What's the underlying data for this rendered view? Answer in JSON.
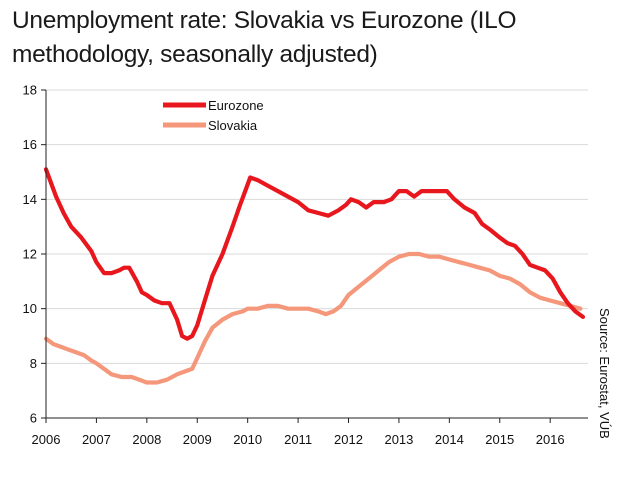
{
  "title": "Unemployment rate: Slovakia vs Eurozone (ILO methodology, seasonally adjusted)",
  "source": "Source: Eurostat, VÚB",
  "colors": {
    "eurozone": "#e8171d",
    "slovakia": "#f5977a",
    "grid": "#d9d9d9",
    "axis": "#222222"
  },
  "chart_data": {
    "type": "line",
    "title": "Unemployment rate: Slovakia vs Eurozone (ILO methodology, seasonally adjusted)",
    "xlabel": "",
    "ylabel": "",
    "xlim": [
      2006.0,
      2016.75
    ],
    "ylim": [
      6,
      18
    ],
    "x_ticks": [
      "2006",
      "2007",
      "2008",
      "2009",
      "2010",
      "2011",
      "2012",
      "2013",
      "2014",
      "2015",
      "2016"
    ],
    "y_ticks": [
      "6",
      "8",
      "10",
      "12",
      "14",
      "16",
      "18"
    ],
    "grid": "horizontal",
    "legend_position": "top-left",
    "series": [
      {
        "name": "Eurozone",
        "x": [
          2006.0,
          2006.1,
          2006.2,
          2006.35,
          2006.5,
          2006.7,
          2006.9,
          2007.0,
          2007.15,
          2007.3,
          2007.45,
          2007.55,
          2007.65,
          2007.8,
          2007.9,
          2008.0,
          2008.15,
          2008.3,
          2008.45,
          2008.6,
          2008.7,
          2008.8,
          2008.9,
          2009.0,
          2009.15,
          2009.3,
          2009.5,
          2009.7,
          2009.85,
          2009.95,
          2010.05,
          2010.2,
          2010.4,
          2010.6,
          2010.8,
          2011.0,
          2011.2,
          2011.4,
          2011.6,
          2011.8,
          2011.95,
          2012.05,
          2012.2,
          2012.35,
          2012.5,
          2012.7,
          2012.85,
          2013.0,
          2013.15,
          2013.3,
          2013.45,
          2013.6,
          2013.8,
          2013.95,
          2014.1,
          2014.3,
          2014.5,
          2014.65,
          2014.8,
          2015.0,
          2015.15,
          2015.3,
          2015.45,
          2015.6,
          2015.75,
          2015.9,
          2016.05,
          2016.2,
          2016.35,
          2016.5,
          2016.65
        ],
        "values": [
          15.1,
          14.6,
          14.1,
          13.5,
          13.0,
          12.6,
          12.1,
          11.7,
          11.3,
          11.3,
          11.4,
          11.5,
          11.5,
          11.0,
          10.6,
          10.5,
          10.3,
          10.2,
          10.2,
          9.6,
          9.0,
          8.9,
          9.0,
          9.4,
          10.3,
          11.2,
          12.0,
          13.0,
          13.8,
          14.3,
          14.8,
          14.7,
          14.5,
          14.3,
          14.1,
          13.9,
          13.6,
          13.5,
          13.4,
          13.6,
          13.8,
          14.0,
          13.9,
          13.7,
          13.9,
          13.9,
          14.0,
          14.3,
          14.3,
          14.1,
          14.3,
          14.3,
          14.3,
          14.3,
          14.0,
          13.7,
          13.5,
          13.1,
          12.9,
          12.6,
          12.4,
          12.3,
          12.0,
          11.6,
          11.5,
          11.4,
          11.1,
          10.6,
          10.2,
          9.9,
          9.7
        ]
      },
      {
        "name": "Slovakia",
        "x": [
          2006.0,
          2006.15,
          2006.3,
          2006.45,
          2006.6,
          2006.75,
          2006.9,
          2007.0,
          2007.15,
          2007.3,
          2007.5,
          2007.7,
          2007.85,
          2008.0,
          2008.2,
          2008.4,
          2008.6,
          2008.75,
          2008.9,
          2009.0,
          2009.15,
          2009.3,
          2009.5,
          2009.7,
          2009.9,
          2010.0,
          2010.2,
          2010.4,
          2010.6,
          2010.8,
          2011.0,
          2011.2,
          2011.4,
          2011.55,
          2011.7,
          2011.85,
          2012.0,
          2012.2,
          2012.4,
          2012.6,
          2012.8,
          2013.0,
          2013.2,
          2013.4,
          2013.6,
          2013.8,
          2014.0,
          2014.2,
          2014.4,
          2014.6,
          2014.8,
          2015.0,
          2015.2,
          2015.4,
          2015.6,
          2015.8,
          2016.0,
          2016.2,
          2016.4,
          2016.6
        ],
        "values": [
          8.9,
          8.7,
          8.6,
          8.5,
          8.4,
          8.3,
          8.1,
          8.0,
          7.8,
          7.6,
          7.5,
          7.5,
          7.4,
          7.3,
          7.3,
          7.4,
          7.6,
          7.7,
          7.8,
          8.2,
          8.8,
          9.3,
          9.6,
          9.8,
          9.9,
          10.0,
          10.0,
          10.1,
          10.1,
          10.0,
          10.0,
          10.0,
          9.9,
          9.8,
          9.9,
          10.1,
          10.5,
          10.8,
          11.1,
          11.4,
          11.7,
          11.9,
          12.0,
          12.0,
          11.9,
          11.9,
          11.8,
          11.7,
          11.6,
          11.5,
          11.4,
          11.2,
          11.1,
          10.9,
          10.6,
          10.4,
          10.3,
          10.2,
          10.1,
          10.0
        ]
      }
    ]
  }
}
